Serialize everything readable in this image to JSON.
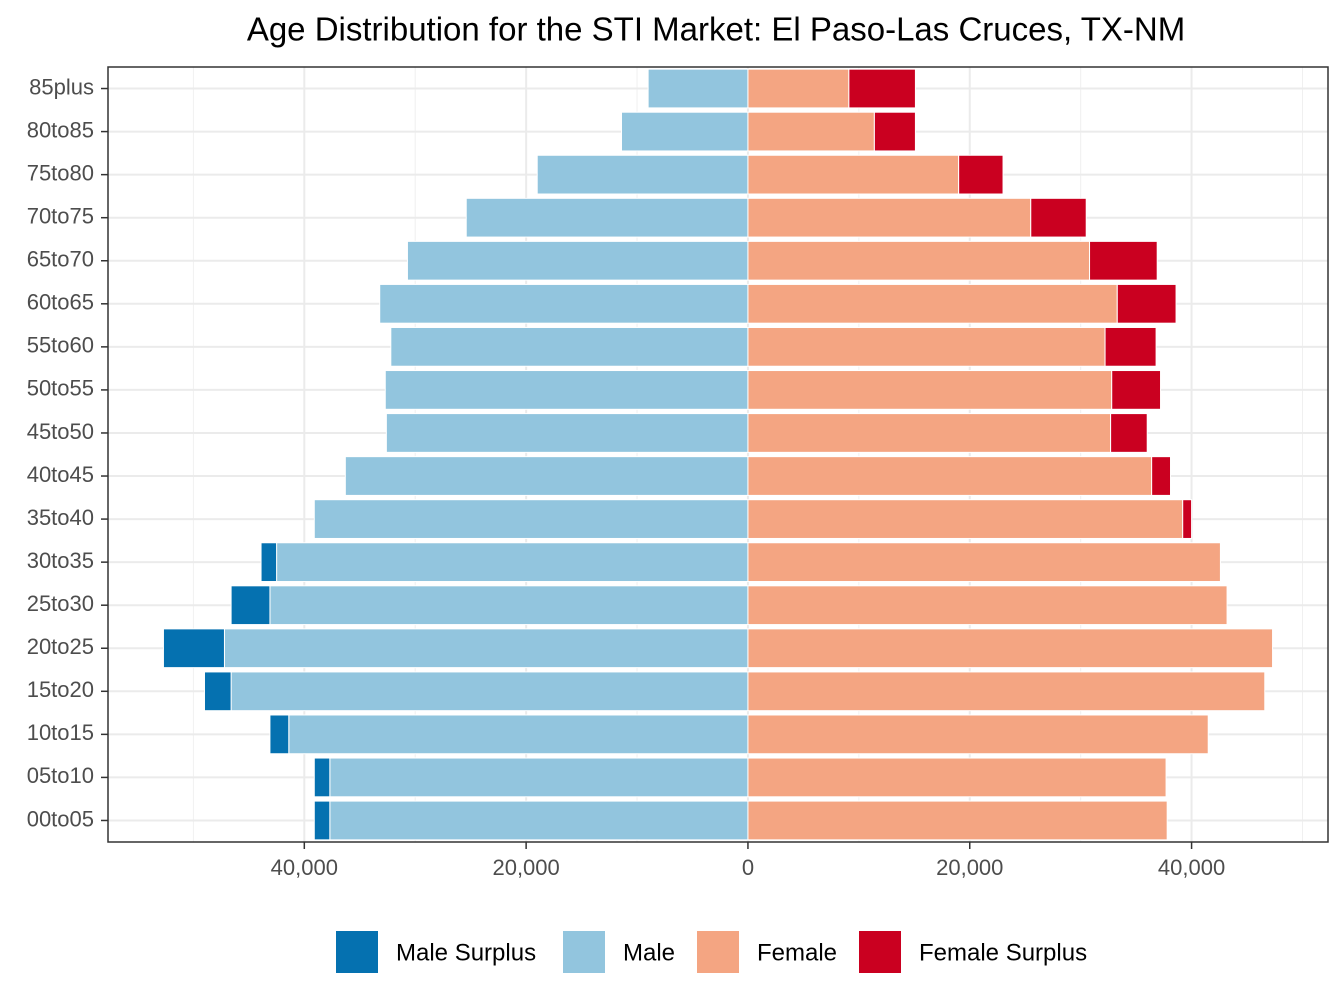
{
  "chart_data": {
    "type": "bar",
    "orientation": "horizontal",
    "stacked": true,
    "title": "Age Distribution for the STI Market: El Paso-Las Cruces, TX-NM",
    "categories": [
      "85plus",
      "80to85",
      "75to80",
      "70to75",
      "65to70",
      "60to65",
      "55to60",
      "50to55",
      "45to50",
      "40to45",
      "35to40",
      "30to35",
      "25to30",
      "20to25",
      "15to20",
      "10to15",
      "05to10",
      "00to05"
    ],
    "series": [
      {
        "name": "Male Surplus",
        "color": "#0571b0",
        "values": [
          0,
          0,
          0,
          0,
          0,
          0,
          0,
          0,
          0,
          0,
          0,
          -1400,
          -3500,
          -5500,
          -2400,
          -1700,
          -1400,
          -1400
        ]
      },
      {
        "name": "Male",
        "color": "#92c5de",
        "values": [
          -9000,
          -11400,
          -19000,
          -25400,
          -30700,
          -33200,
          -32200,
          -32700,
          -32600,
          -36300,
          -39100,
          -42500,
          -43100,
          -47200,
          -46600,
          -41400,
          -37700,
          -37700
        ]
      },
      {
        "name": "Female",
        "color": "#f4a582",
        "values": [
          9100,
          11400,
          19000,
          25500,
          30800,
          33300,
          32200,
          32800,
          32700,
          36400,
          39200,
          42600,
          43200,
          47300,
          46600,
          41500,
          37700,
          37800
        ]
      },
      {
        "name": "Female Surplus",
        "color": "#ca0020",
        "values": [
          6000,
          3700,
          4000,
          5000,
          6100,
          5300,
          4600,
          4400,
          3300,
          1700,
          800,
          0,
          0,
          0,
          0,
          0,
          0,
          0
        ]
      }
    ],
    "xlim": [
      -57700,
      52300
    ],
    "xticks": [
      {
        "value": -40000,
        "label": "40,000"
      },
      {
        "value": -20000,
        "label": "20,000"
      },
      0,
      {
        "value": 20000,
        "label": "20,000"
      },
      {
        "value": 40000,
        "label": "40,000"
      }
    ],
    "grid": true,
    "legend": "bottom"
  }
}
